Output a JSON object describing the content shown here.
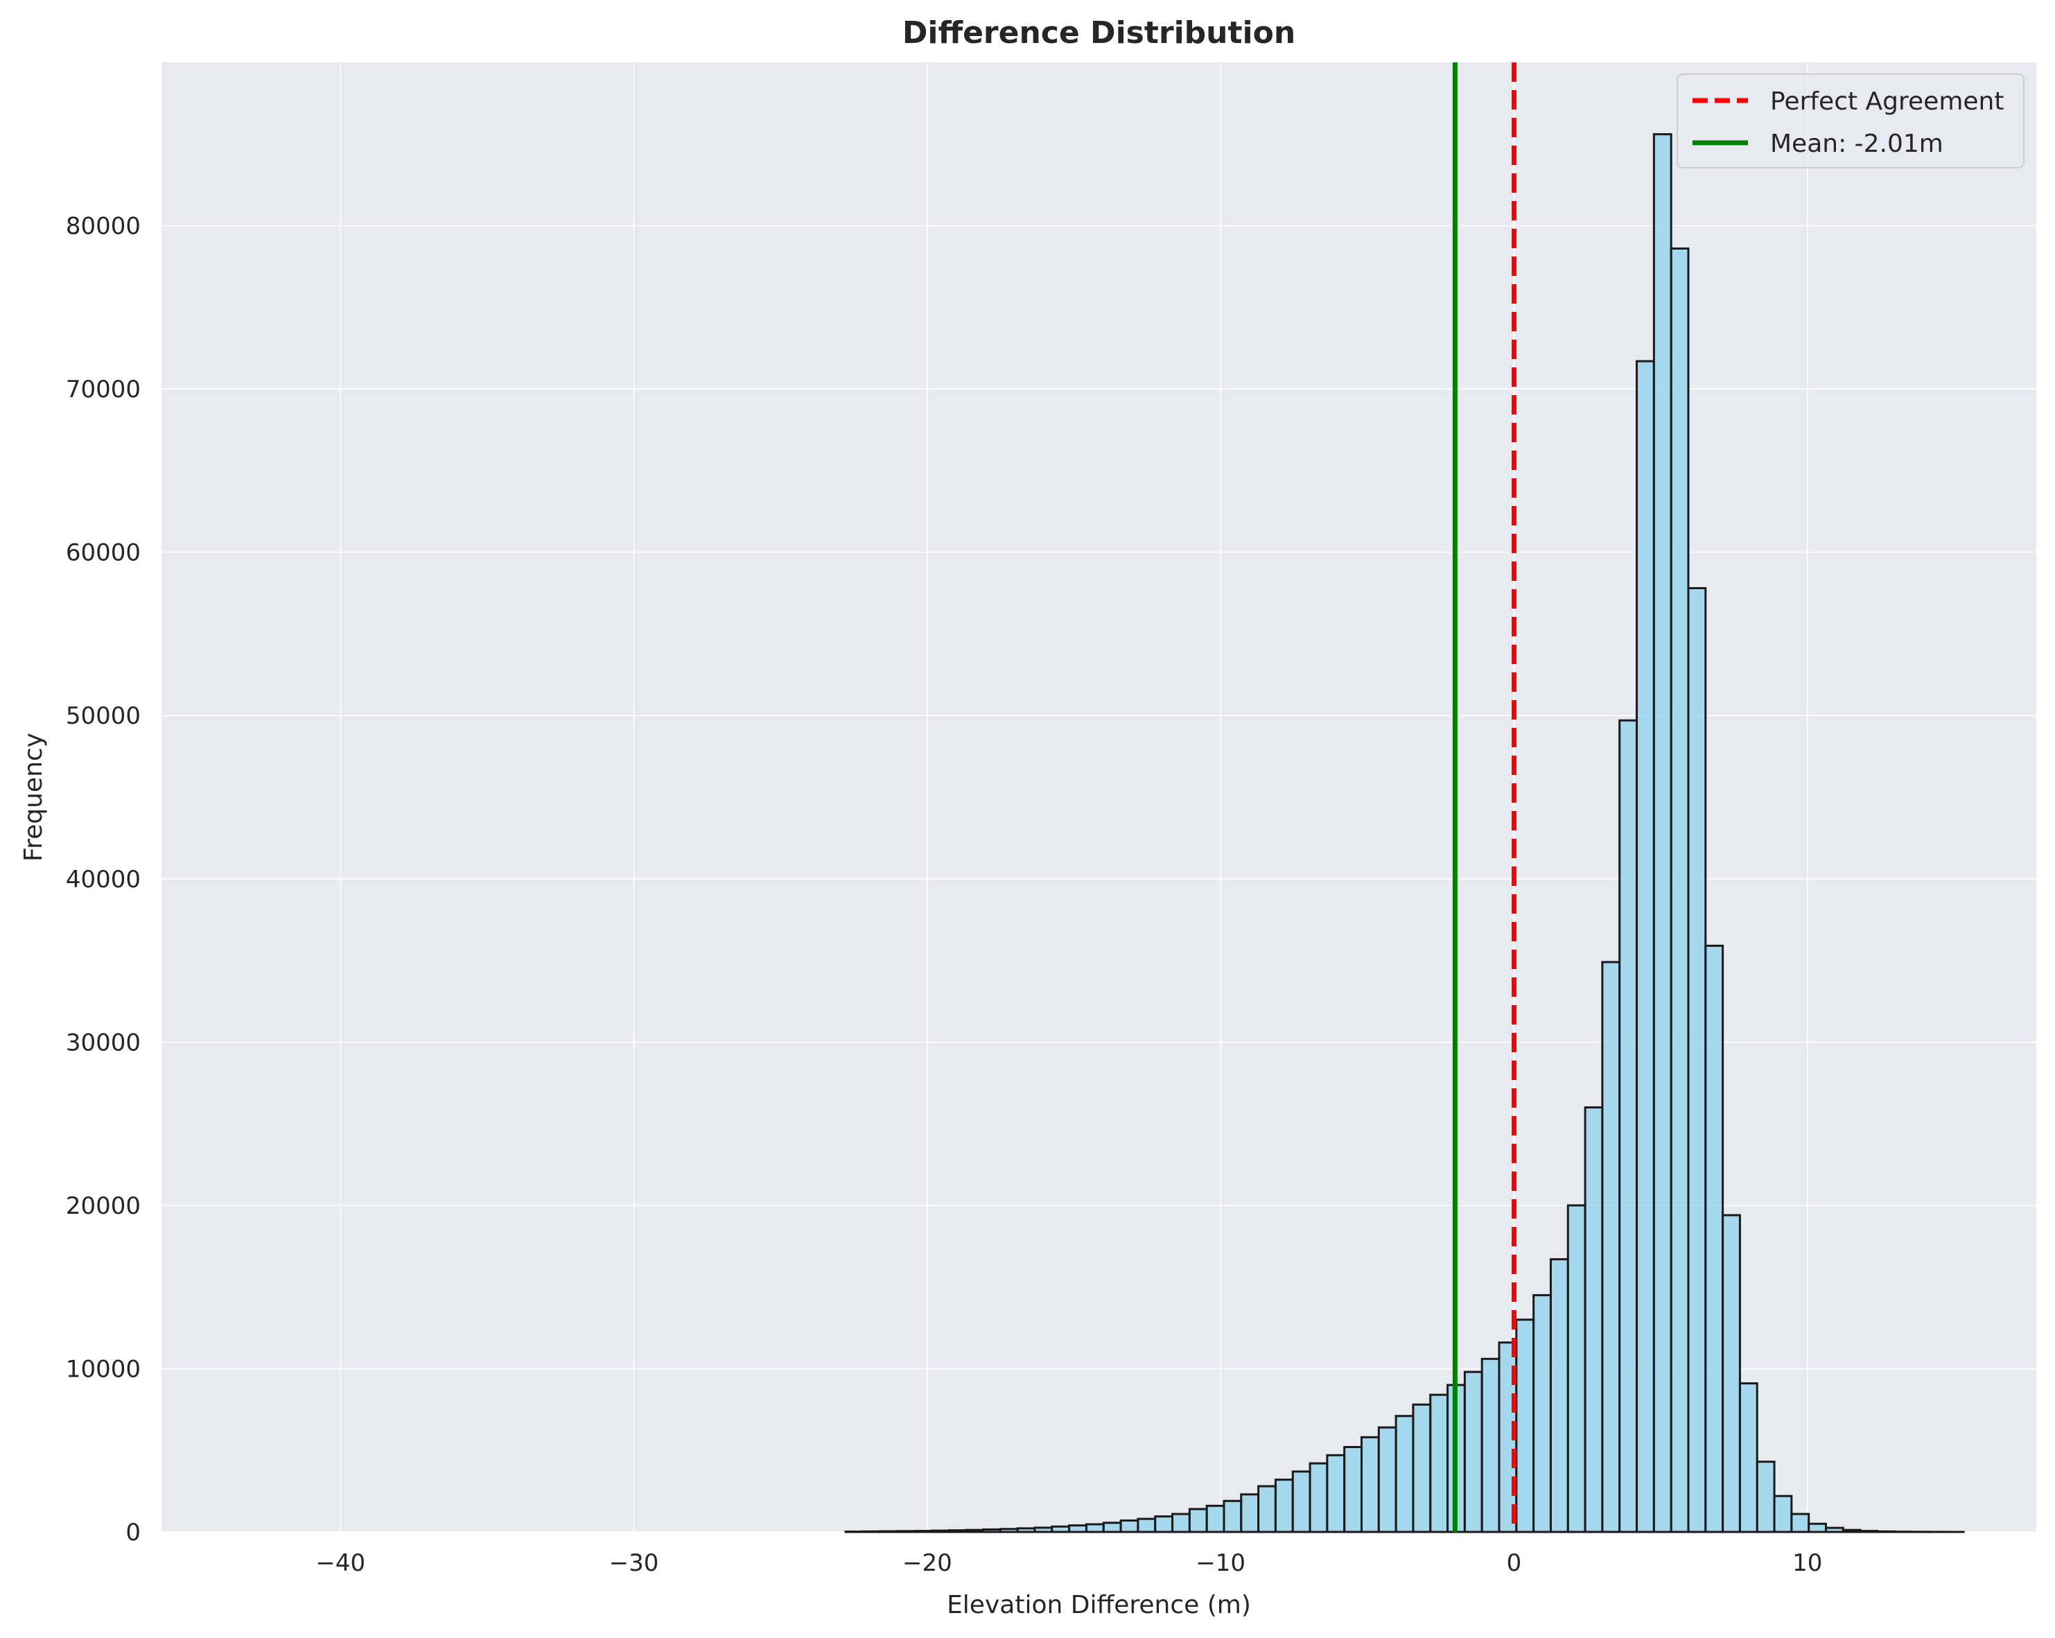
{
  "chart_data": {
    "type": "bar",
    "title": "Difference Distribution",
    "xlabel": "Elevation Difference (m)",
    "ylabel": "Frequency",
    "xlim": [
      -46.1,
      17.8
    ],
    "ylim": [
      0,
      90000
    ],
    "xticks": [
      -40,
      -30,
      -20,
      -10,
      0,
      10
    ],
    "xtick_labels": [
      "−40",
      "−30",
      "−20",
      "−10",
      "0",
      "10"
    ],
    "yticks": [
      0,
      10000,
      20000,
      30000,
      40000,
      50000,
      60000,
      70000,
      80000
    ],
    "ytick_labels": [
      "0",
      "10000",
      "20000",
      "30000",
      "40000",
      "50000",
      "60000",
      "70000",
      "80000"
    ],
    "grid": true,
    "background_color": "#e9eaf1",
    "bar_fill": "#87ceeb",
    "bar_edge": "#1a1a1a",
    "bin_start": -43.3,
    "bin_width": 0.5862,
    "values": [
      0,
      0,
      0,
      0,
      0,
      0,
      0,
      0,
      0,
      0,
      0,
      0,
      0,
      0,
      0,
      0,
      0,
      0,
      0,
      0,
      0,
      0,
      0,
      0,
      0,
      0,
      0,
      0,
      0,
      0,
      0,
      0,
      0,
      0,
      0,
      20,
      30,
      40,
      50,
      60,
      80,
      100,
      120,
      150,
      180,
      220,
      260,
      330,
      400,
      470,
      560,
      700,
      800,
      950,
      1100,
      1400,
      1600,
      1900,
      2300,
      2800,
      3200,
      3700,
      4200,
      4700,
      5200,
      5800,
      6400,
      7100,
      7800,
      8400,
      9000,
      9800,
      10600,
      11600,
      13000,
      14500,
      16700,
      20000,
      26000,
      34900,
      49700,
      71700,
      85600,
      78600,
      57800,
      35900,
      19400,
      9100,
      4300,
      2200,
      1100,
      500,
      250,
      120,
      60,
      30,
      15,
      8,
      4,
      2,
      0,
      0,
      0,
      0,
      0,
      0,
      0,
      0,
      0,
      0
    ],
    "reference_lines": [
      {
        "name": "Perfect Agreement",
        "x": 0,
        "style": "dashed",
        "color": "#ff0000"
      },
      {
        "name": "Mean: -2.01m",
        "x": -2.01,
        "style": "solid",
        "color": "#008000"
      }
    ],
    "legend_position": "top-right"
  }
}
